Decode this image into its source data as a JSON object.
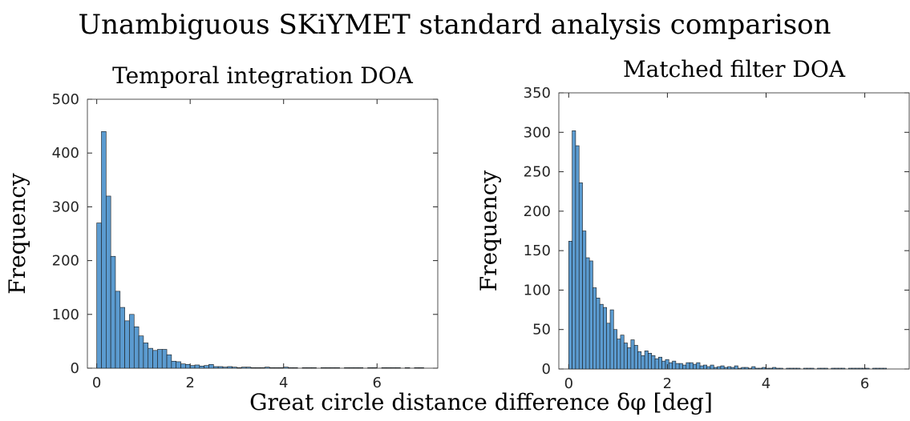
{
  "title": "Unambiguous SKiYMET standard analysis comparison",
  "xlabel": "Great circle distance difference δφ [deg]",
  "chart_data": [
    {
      "type": "histogram",
      "title": "Temporal integration DOA",
      "ylabel": "Frequency",
      "color": "#5b9bd0",
      "bins": [
        0,
        0.1,
        0.2,
        0.3,
        0.4,
        0.5,
        0.6,
        0.7,
        0.8,
        0.9,
        1,
        1.1,
        1.2,
        1.3,
        1.4,
        1.5,
        1.6,
        1.7,
        1.8,
        1.9,
        2,
        2.1,
        2.2,
        2.3,
        2.4,
        2.5,
        2.6,
        2.7,
        2.8,
        2.9,
        3,
        3.1,
        3.2,
        3.3,
        3.4,
        3.5,
        3.6,
        3.7,
        3.8,
        3.9,
        4,
        4.1,
        4.2,
        4.3,
        4.4,
        4.5,
        4.6,
        4.7,
        4.8,
        4.9,
        5,
        5.1,
        5.2,
        5.3,
        5.4,
        5.5,
        5.6,
        5.7,
        5.8,
        5.9,
        6,
        6.1,
        6.2,
        6.3,
        6.4,
        6.5,
        6.6,
        6.7,
        6.8,
        6.9,
        7
      ],
      "values": [
        270,
        440,
        320,
        208,
        143,
        113,
        88,
        100,
        77,
        60,
        47,
        37,
        33,
        35,
        35,
        25,
        13,
        12,
        8,
        7,
        5,
        6,
        4,
        5,
        7,
        3,
        3,
        2,
        3,
        2,
        1,
        2,
        2,
        1,
        1,
        1,
        2,
        1,
        1,
        1,
        2,
        1,
        1,
        0,
        1,
        1,
        1,
        0,
        1,
        1,
        1,
        1,
        0,
        1,
        1,
        1,
        1,
        0,
        1,
        1,
        0,
        1,
        1,
        1,
        1,
        0,
        1,
        0,
        1,
        1
      ],
      "xlim": [
        -0.2,
        7.3
      ],
      "ylim": [
        0,
        500
      ],
      "xticks": [
        0,
        2,
        4,
        6
      ],
      "yticks": [
        0,
        100,
        200,
        300,
        400,
        500
      ]
    },
    {
      "type": "histogram",
      "title": "Matched filter DOA",
      "ylabel": "Frequency",
      "color": "#5b9bd0",
      "bins": [
        0,
        0.07,
        0.14,
        0.21,
        0.28,
        0.35,
        0.42,
        0.49,
        0.56,
        0.63,
        0.7,
        0.77,
        0.84,
        0.91,
        0.98,
        1.05,
        1.12,
        1.19,
        1.26,
        1.33,
        1.4,
        1.47,
        1.54,
        1.61,
        1.68,
        1.75,
        1.82,
        1.89,
        1.96,
        2.03,
        2.1,
        2.17,
        2.24,
        2.31,
        2.38,
        2.45,
        2.52,
        2.59,
        2.66,
        2.73,
        2.8,
        2.87,
        2.94,
        3.01,
        3.08,
        3.15,
        3.22,
        3.29,
        3.36,
        3.43,
        3.5,
        3.57,
        3.64,
        3.71,
        3.78,
        3.85,
        3.92,
        3.99,
        4.06,
        4.13,
        4.2,
        4.27,
        4.34,
        4.41,
        4.48,
        4.55,
        4.62,
        4.69,
        4.76,
        4.83,
        4.9,
        4.97,
        5.04,
        5.11,
        5.18,
        5.25,
        5.32,
        5.39,
        5.46,
        5.53,
        5.6,
        5.67,
        5.74,
        5.81,
        5.88,
        5.95,
        6.02,
        6.09,
        6.16,
        6.23,
        6.3,
        6.37,
        6.44,
        6.51
      ],
      "values": [
        162,
        302,
        283,
        236,
        175,
        141,
        137,
        103,
        90,
        82,
        78,
        58,
        75,
        50,
        38,
        43,
        33,
        27,
        37,
        30,
        22,
        17,
        23,
        20,
        17,
        13,
        15,
        10,
        12,
        8,
        10,
        7,
        7,
        5,
        8,
        8,
        6,
        8,
        4,
        5,
        3,
        5,
        2,
        3,
        4,
        2,
        3,
        2,
        4,
        1,
        2,
        2,
        1,
        3,
        1,
        1,
        2,
        1,
        1,
        2,
        1,
        1,
        0,
        1,
        1,
        1,
        1,
        0,
        1,
        1,
        1,
        0,
        1,
        1,
        1,
        0,
        1,
        1,
        1,
        1,
        0,
        1,
        1,
        1,
        1,
        1,
        1,
        0,
        1,
        1,
        1,
        1,
        0
      ],
      "xlim": [
        -0.2,
        6.9
      ],
      "ylim": [
        0,
        350
      ],
      "xticks": [
        0,
        2,
        4,
        6
      ],
      "yticks": [
        0,
        50,
        100,
        150,
        200,
        250,
        300,
        350
      ]
    }
  ]
}
